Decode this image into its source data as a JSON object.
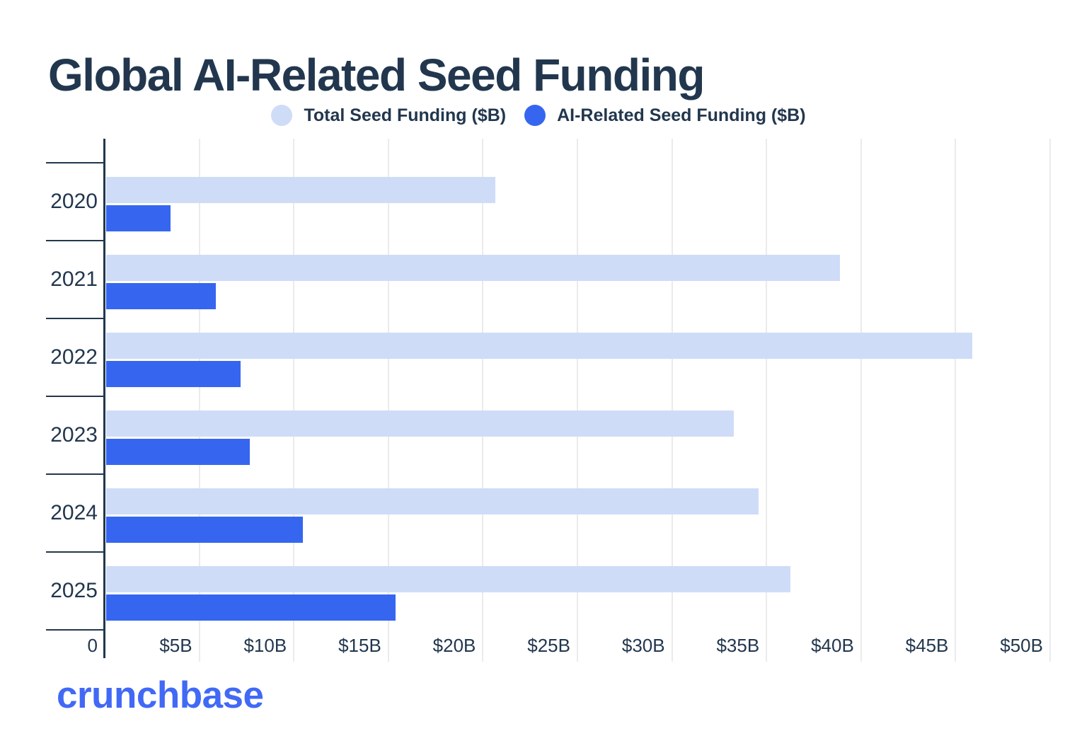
{
  "header": {
    "title": "Global AI-Related Seed Funding"
  },
  "legend": {
    "items": [
      {
        "label": "Total Seed Funding ($B)",
        "color": "#CFDCF8"
      },
      {
        "label": "AI-Related Seed Funding ($B)",
        "color": "#3666F0"
      }
    ]
  },
  "chart_data": {
    "type": "bar",
    "orientation": "horizontal",
    "title": "Global AI-Related Seed Funding",
    "categories": [
      "2020",
      "2021",
      "2022",
      "2023",
      "2024",
      "2025"
    ],
    "series": [
      {
        "name": "Total Seed Funding ($B)",
        "color": "#CFDCF8",
        "values": [
          20.6,
          38.8,
          45.8,
          33.2,
          34.5,
          36.2
        ]
      },
      {
        "name": "AI-Related Seed Funding ($B)",
        "color": "#3666F0",
        "values": [
          3.4,
          5.8,
          7.1,
          7.6,
          10.4,
          15.3
        ]
      }
    ],
    "xlabel": "",
    "ylabel": "",
    "x_axis": {
      "min": 0,
      "max": 50.8,
      "tick_values": [
        0,
        5,
        10,
        15,
        20,
        25,
        30,
        35,
        40,
        45,
        50
      ],
      "tick_labels": [
        "0",
        "$5B",
        "$10B",
        "$15B",
        "$20B",
        "$25B",
        "$30B",
        "$35B",
        "$40B",
        "$45B",
        "$50B"
      ]
    },
    "grid": "vertical",
    "legend_position": "top-center"
  },
  "colors": {
    "navy": "#22374E",
    "grid": "#EBEBEB",
    "bar_light": "#CFDCF8",
    "bar_blue": "#3666F0",
    "logo_blue": "#4169F6",
    "background": "#FFFFFF"
  },
  "footer": {
    "brand": "crunchbase"
  }
}
